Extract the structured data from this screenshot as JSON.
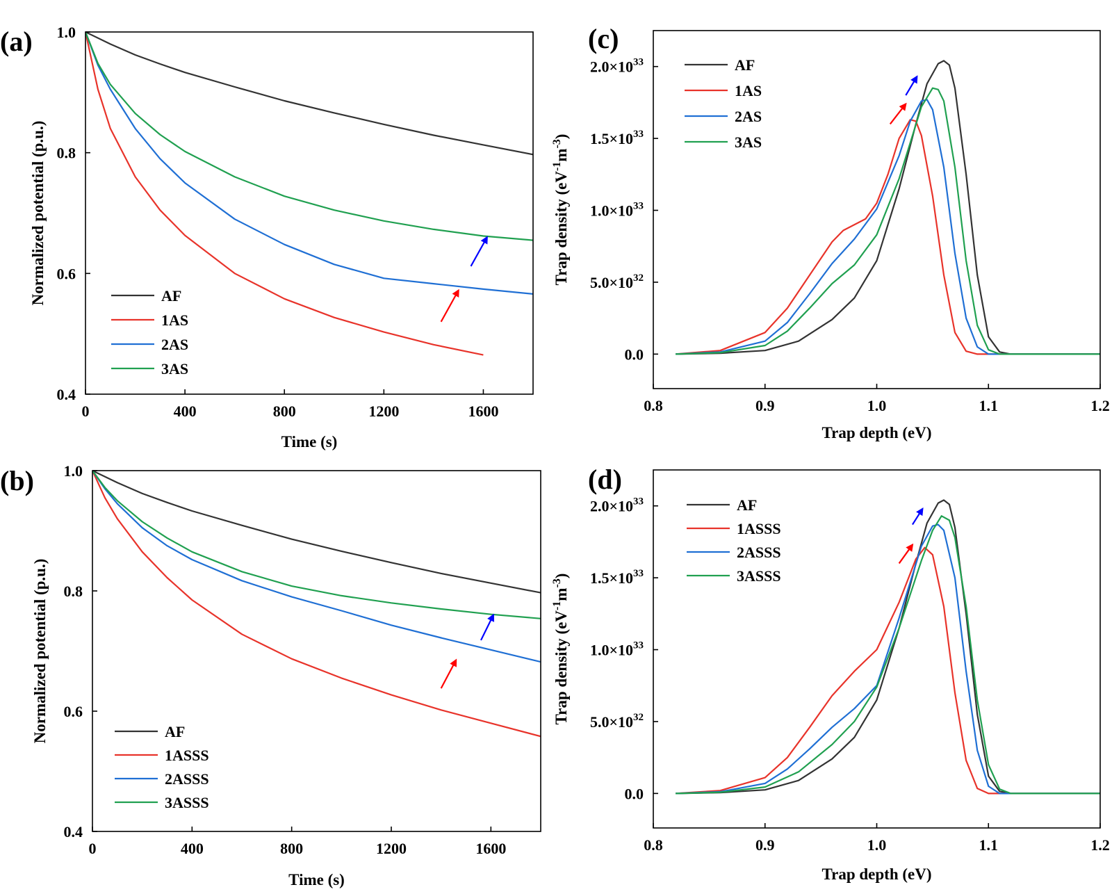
{
  "chart_data": [
    {
      "panel": "(a)",
      "type": "line",
      "xlabel": "Time (s)",
      "ylabel": "Normalized potential (p.u.)",
      "xlim": [
        0,
        1800
      ],
      "ylim": [
        0.4,
        1.0
      ],
      "xticks": [
        0,
        400,
        800,
        1200,
        1600
      ],
      "xtick_labels": [
        "0",
        "400",
        "800",
        "1200",
        "1600"
      ],
      "yticks": [
        0.4,
        0.6,
        0.8,
        1.0
      ],
      "ytick_labels": [
        "0.4",
        "0.6",
        "0.8",
        "1.0"
      ],
      "legend_position": "bottom-left",
      "arrows": [
        {
          "color": "#ff0000",
          "from": [
            1430,
            0.52
          ],
          "to": [
            1500,
            0.572
          ]
        },
        {
          "color": "#0000ff",
          "from": [
            1550,
            0.612
          ],
          "to": [
            1615,
            0.66
          ]
        }
      ],
      "series": [
        {
          "name": "AF",
          "color": "#333333",
          "x": [
            0,
            100,
            200,
            300,
            400,
            600,
            800,
            1000,
            1200,
            1400,
            1600,
            1800
          ],
          "y": [
            1.0,
            0.98,
            0.962,
            0.947,
            0.933,
            0.909,
            0.886,
            0.866,
            0.847,
            0.829,
            0.813,
            0.797
          ]
        },
        {
          "name": "1AS",
          "color": "#e8332a",
          "x": [
            0,
            50,
            100,
            200,
            300,
            400,
            600,
            800,
            1000,
            1200,
            1400,
            1600
          ],
          "y": [
            1.0,
            0.905,
            0.84,
            0.76,
            0.705,
            0.663,
            0.6,
            0.558,
            0.527,
            0.503,
            0.482,
            0.465
          ]
        },
        {
          "name": "2AS",
          "color": "#1f6fd4",
          "x": [
            0,
            50,
            100,
            200,
            300,
            400,
            600,
            800,
            1000,
            1200,
            1400,
            1600,
            1800
          ],
          "y": [
            1.0,
            0.945,
            0.905,
            0.84,
            0.79,
            0.75,
            0.69,
            0.648,
            0.615,
            0.592,
            0.583,
            0.574,
            0.566
          ]
        },
        {
          "name": "3AS",
          "color": "#20a050",
          "x": [
            0,
            50,
            100,
            200,
            300,
            400,
            600,
            800,
            1000,
            1200,
            1400,
            1600,
            1800
          ],
          "y": [
            1.0,
            0.948,
            0.913,
            0.865,
            0.83,
            0.802,
            0.76,
            0.728,
            0.705,
            0.687,
            0.673,
            0.662,
            0.655
          ]
        }
      ]
    },
    {
      "panel": "(b)",
      "type": "line",
      "xlabel": "Time (s)",
      "ylabel": "Normalized potential (p.u.)",
      "xlim": [
        0,
        1800
      ],
      "ylim": [
        0.4,
        1.0
      ],
      "xticks": [
        0,
        400,
        800,
        1200,
        1600
      ],
      "xtick_labels": [
        "0",
        "400",
        "800",
        "1200",
        "1600"
      ],
      "yticks": [
        0.4,
        0.6,
        0.8,
        1.0
      ],
      "ytick_labels": [
        "0.4",
        "0.6",
        "0.8",
        "1.0"
      ],
      "legend_position": "bottom-left",
      "arrows": [
        {
          "color": "#ff0000",
          "from": [
            1400,
            0.638
          ],
          "to": [
            1460,
            0.685
          ]
        },
        {
          "color": "#0000ff",
          "from": [
            1560,
            0.718
          ],
          "to": [
            1610,
            0.76
          ]
        }
      ],
      "series": [
        {
          "name": "AF",
          "color": "#333333",
          "x": [
            0,
            100,
            200,
            300,
            400,
            600,
            800,
            1000,
            1200,
            1400,
            1600,
            1800
          ],
          "y": [
            1.0,
            0.98,
            0.962,
            0.947,
            0.933,
            0.909,
            0.886,
            0.866,
            0.847,
            0.829,
            0.813,
            0.797
          ]
        },
        {
          "name": "1ASSS",
          "color": "#e8332a",
          "x": [
            0,
            50,
            100,
            200,
            300,
            400,
            600,
            800,
            1000,
            1200,
            1400,
            1600,
            1800
          ],
          "y": [
            1.0,
            0.955,
            0.92,
            0.865,
            0.822,
            0.785,
            0.728,
            0.687,
            0.655,
            0.627,
            0.602,
            0.58,
            0.558
          ]
        },
        {
          "name": "2ASSS",
          "color": "#1f6fd4",
          "x": [
            0,
            50,
            100,
            200,
            300,
            400,
            600,
            800,
            1000,
            1200,
            1400,
            1600,
            1800
          ],
          "y": [
            1.0,
            0.97,
            0.945,
            0.905,
            0.875,
            0.852,
            0.817,
            0.79,
            0.767,
            0.743,
            0.722,
            0.702,
            0.682
          ]
        },
        {
          "name": "3ASSS",
          "color": "#20a050",
          "x": [
            0,
            50,
            100,
            200,
            300,
            400,
            600,
            800,
            1000,
            1200,
            1400,
            1600,
            1800
          ],
          "y": [
            1.0,
            0.972,
            0.95,
            0.915,
            0.888,
            0.865,
            0.832,
            0.808,
            0.792,
            0.78,
            0.77,
            0.761,
            0.754
          ]
        }
      ]
    },
    {
      "panel": "(c)",
      "type": "line",
      "xlabel": "Trap depth (eV)",
      "ylabel": "Trap density (eV⁻¹m⁻³)",
      "xlim": [
        0.8,
        1.2
      ],
      "ylim": [
        -2.4e+32,
        2.25e+33
      ],
      "xticks": [
        0.8,
        0.9,
        1.0,
        1.1,
        1.2
      ],
      "xtick_labels": [
        "0.8",
        "0.9",
        "1.0",
        "1.1",
        "1.2"
      ],
      "yticks": [
        0,
        5e+32,
        1e+33,
        1.5e+33,
        2e+33
      ],
      "ytick_mantissas": [
        "0.0",
        "5.0×10",
        "1.0×10",
        "1.5×10",
        "2.0×10"
      ],
      "ytick_exponents": [
        "",
        "32",
        "33",
        "33",
        "33"
      ],
      "legend_position": "top-left",
      "arrows": [
        {
          "color": "#ff0000",
          "from": [
            1.012,
            1.6e+33
          ],
          "to": [
            1.026,
            1.74e+33
          ]
        },
        {
          "color": "#0000ff",
          "from": [
            1.026,
            1.8e+33
          ],
          "to": [
            1.036,
            1.93e+33
          ]
        }
      ],
      "series": [
        {
          "name": "AF",
          "color": "#333333",
          "x": [
            0.82,
            0.86,
            0.9,
            0.93,
            0.96,
            0.98,
            1.0,
            1.02,
            1.035,
            1.045,
            1.055,
            1.06,
            1.065,
            1.07,
            1.08,
            1.09,
            1.1,
            1.11,
            1.12,
            1.2
          ],
          "y": [
            0,
            6e+30,
            2.5e+31,
            9e+31,
            2.4e+32,
            3.9e+32,
            6.5e+32,
            1.15e+33,
            1.6e+33,
            1.88e+33,
            2.02e+33,
            2.04e+33,
            2.01e+33,
            1.85e+33,
            1.25e+33,
            5.5e+32,
            1.2e+32,
            1.5e+31,
            0,
            0
          ]
        },
        {
          "name": "1AS",
          "color": "#e8332a",
          "x": [
            0.82,
            0.86,
            0.9,
            0.92,
            0.94,
            0.96,
            0.97,
            0.99,
            1.0,
            1.01,
            1.02,
            1.03,
            1.035,
            1.04,
            1.05,
            1.06,
            1.07,
            1.08,
            1.09,
            1.2
          ],
          "y": [
            0,
            2.5e+31,
            1.5e+32,
            3.2e+32,
            5.5e+32,
            7.8e+32,
            8.6e+32,
            9.4e+32,
            1.05e+33,
            1.25e+33,
            1.5e+33,
            1.63e+33,
            1.62e+33,
            1.52e+33,
            1.1e+33,
            5.5e+32,
            1.5e+32,
            2e+31,
            0,
            0
          ]
        },
        {
          "name": "2AS",
          "color": "#1f6fd4",
          "x": [
            0.82,
            0.86,
            0.9,
            0.92,
            0.94,
            0.96,
            0.98,
            1.0,
            1.02,
            1.03,
            1.04,
            1.045,
            1.05,
            1.06,
            1.07,
            1.08,
            1.09,
            1.1,
            1.2
          ],
          "y": [
            0,
            1.5e+31,
            9e+31,
            2.2e+32,
            4.2e+32,
            6.3e+32,
            8e+32,
            1.01e+33,
            1.38e+33,
            1.62e+33,
            1.76e+33,
            1.77e+33,
            1.7e+33,
            1.3e+33,
            7e+32,
            2.5e+32,
            5e+31,
            0,
            0
          ]
        },
        {
          "name": "3AS",
          "color": "#20a050",
          "x": [
            0.82,
            0.86,
            0.9,
            0.92,
            0.94,
            0.96,
            0.98,
            1.0,
            1.02,
            1.04,
            1.05,
            1.055,
            1.06,
            1.07,
            1.08,
            1.09,
            1.1,
            1.11,
            1.2
          ],
          "y": [
            0,
            1e+31,
            6e+31,
            1.6e+32,
            3.2e+32,
            4.9e+32,
            6.2e+32,
            8.3e+32,
            1.22e+33,
            1.72e+33,
            1.85e+33,
            1.84e+33,
            1.76e+33,
            1.3e+33,
            6.5e+32,
            2e+32,
            3e+31,
            0,
            0
          ]
        }
      ]
    },
    {
      "panel": "(d)",
      "type": "line",
      "xlabel": "Trap depth (eV)",
      "ylabel": "Trap density (eV⁻¹m⁻³)",
      "xlim": [
        0.8,
        1.2
      ],
      "ylim": [
        -2.4e+32,
        2.25e+33
      ],
      "xticks": [
        0.8,
        0.9,
        1.0,
        1.1,
        1.2
      ],
      "xtick_labels": [
        "0.8",
        "0.9",
        "1.0",
        "1.1",
        "1.2"
      ],
      "yticks": [
        0,
        5e+32,
        1e+33,
        1.5e+33,
        2e+33
      ],
      "ytick_mantissas": [
        "0.0",
        "5.0×10",
        "1.0×10",
        "1.5×10",
        "2.0×10"
      ],
      "ytick_exponents": [
        "",
        "32",
        "33",
        "33",
        "33"
      ],
      "legend_position": "top-left",
      "arrows": [
        {
          "color": "#ff0000",
          "from": [
            1.02,
            1.6e+33
          ],
          "to": [
            1.032,
            1.73e+33
          ]
        },
        {
          "color": "#0000ff",
          "from": [
            1.032,
            1.87e+33
          ],
          "to": [
            1.041,
            1.98e+33
          ]
        }
      ],
      "series": [
        {
          "name": "AF",
          "color": "#333333",
          "x": [
            0.82,
            0.86,
            0.9,
            0.93,
            0.96,
            0.98,
            1.0,
            1.02,
            1.035,
            1.045,
            1.055,
            1.06,
            1.065,
            1.07,
            1.08,
            1.09,
            1.1,
            1.11,
            1.12,
            1.2
          ],
          "y": [
            0,
            6e+30,
            2.5e+31,
            9e+31,
            2.4e+32,
            3.9e+32,
            6.5e+32,
            1.15e+33,
            1.6e+33,
            1.88e+33,
            2.02e+33,
            2.04e+33,
            2.01e+33,
            1.85e+33,
            1.25e+33,
            5.5e+32,
            1.2e+32,
            1.5e+31,
            0,
            0
          ]
        },
        {
          "name": "1ASSS",
          "color": "#e8332a",
          "x": [
            0.82,
            0.86,
            0.9,
            0.92,
            0.94,
            0.96,
            0.98,
            1.0,
            1.02,
            1.035,
            1.043,
            1.05,
            1.06,
            1.07,
            1.08,
            1.09,
            1.1,
            1.2
          ],
          "y": [
            0,
            2e+31,
            1.1e+32,
            2.5e+32,
            4.6e+32,
            6.8e+32,
            8.5e+32,
            1e+33,
            1.33e+33,
            1.63e+33,
            1.71e+33,
            1.66e+33,
            1.3e+33,
            7e+32,
            2.3e+32,
            3.5e+31,
            0,
            0
          ]
        },
        {
          "name": "2ASSS",
          "color": "#1f6fd4",
          "x": [
            0.82,
            0.86,
            0.9,
            0.92,
            0.94,
            0.96,
            0.98,
            1.0,
            1.02,
            1.04,
            1.05,
            1.055,
            1.06,
            1.07,
            1.08,
            1.09,
            1.1,
            1.11,
            1.2
          ],
          "y": [
            0,
            1.2e+31,
            7e+31,
            1.7e+32,
            3.1e+32,
            4.6e+32,
            5.9e+32,
            7.5e+32,
            1.22e+33,
            1.72e+33,
            1.86e+33,
            1.87e+33,
            1.83e+33,
            1.5e+33,
            8.5e+32,
            3e+32,
            5e+31,
            0,
            0
          ]
        },
        {
          "name": "3ASSS",
          "color": "#20a050",
          "x": [
            0.82,
            0.86,
            0.9,
            0.93,
            0.96,
            0.98,
            1.0,
            1.02,
            1.04,
            1.05,
            1.058,
            1.065,
            1.07,
            1.08,
            1.09,
            1.1,
            1.11,
            1.12,
            1.2
          ],
          "y": [
            0,
            8e+30,
            4.5e+31,
            1.5e+32,
            3.4e+32,
            5e+32,
            7.4e+32,
            1.15e+33,
            1.62e+33,
            1.83e+33,
            1.93e+33,
            1.9e+33,
            1.78e+33,
            1.3e+33,
            6.5e+32,
            2e+32,
            3e+31,
            0,
            0
          ]
        }
      ]
    }
  ]
}
